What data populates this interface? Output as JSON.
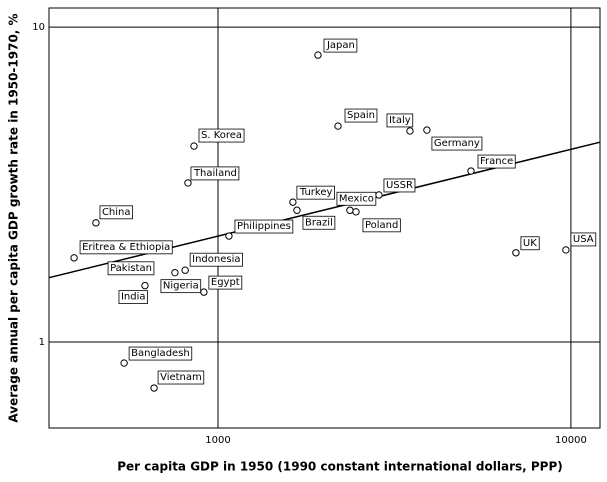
{
  "chart_data": {
    "type": "scatter",
    "x_label": "Per capita GDP in 1950 (1990 constant international dollars, PPP)",
    "y_label": "Average annual per capita GDP growth rate in 1950-1970, %",
    "log_x": true,
    "log_y": true,
    "grid": true,
    "xlim": [
      332,
      12090
    ],
    "ylim": [
      0.533,
      11.5
    ],
    "xticks": [
      1000,
      10000
    ],
    "yticks": [
      1,
      10
    ],
    "series": [
      {
        "color": "#ffffff",
        "labels": [
          "Japan",
          "Spain",
          "Italy",
          "Germany",
          "France",
          "USSR",
          "Mexico",
          "Poland",
          "Turkey",
          "Brazil",
          "Philippines",
          "S. Korea",
          "Thailand",
          "China",
          "Eritrea & Ethiopia",
          "Pakistan",
          "India",
          "Indonesia",
          "Nigeria",
          "Egypt",
          "Bangladesh",
          "Vietnam",
          "UK",
          "USA"
        ],
        "x": [
          1920,
          2188,
          3499,
          3908,
          5210,
          2858,
          2365,
          2460,
          1630,
          1674,
          1074,
          855,
          822,
          451,
          391,
          642,
          621,
          807,
          755,
          912,
          542,
          659,
          6985,
          9680
        ],
        "values": [
          8.15,
          4.85,
          4.68,
          4.71,
          3.49,
          2.93,
          2.62,
          2.59,
          2.78,
          2.62,
          2.17,
          4.19,
          3.2,
          2.39,
          1.85,
          1.72,
          1.51,
          1.69,
          1.66,
          1.44,
          0.857,
          0.714,
          1.92,
          1.96
        ]
      }
    ],
    "trend_line": {
      "color": "#000000",
      "x": [
        332,
        12090
      ],
      "values": [
        1.6,
        4.31
      ]
    }
  }
}
